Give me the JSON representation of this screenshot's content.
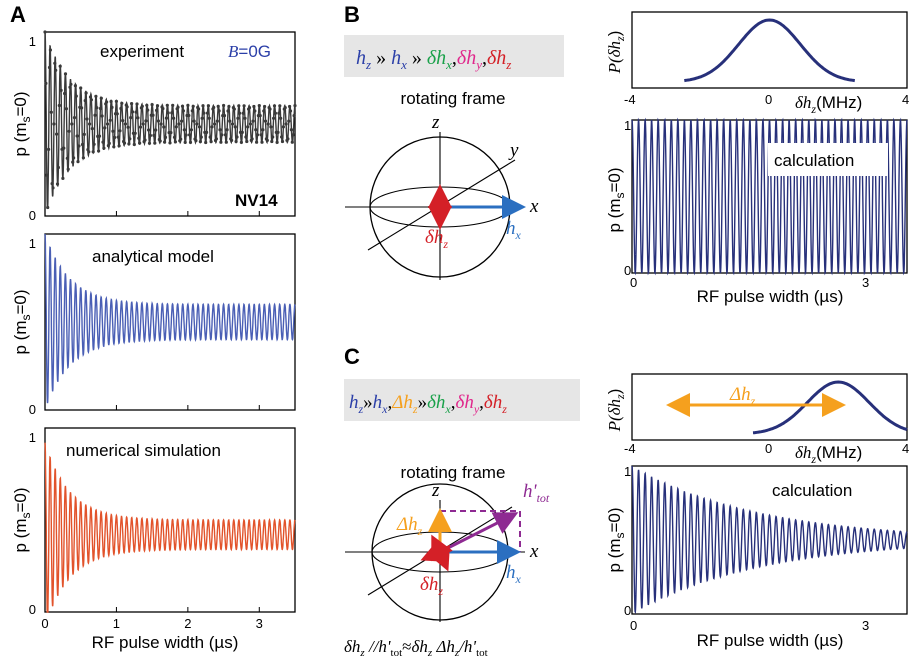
{
  "panels": {
    "A": "A",
    "B": "B",
    "C": "C"
  },
  "colors": {
    "experiment": "#3a3a3a",
    "analytical": "#4a5fb5",
    "numerical": "#e2532b",
    "calculation": "#27307a",
    "red": "#d42027",
    "blue": "#2b6fc0",
    "green": "#1aa14a",
    "magenta": "#e0288c",
    "orange": "#f5a01e",
    "purple": "#8e2a92",
    "box": "#e6e6e6"
  },
  "panelA": {
    "xlabel": "RF pulse width (µs)",
    "ylabel": "p (m",
    "ylabel_sub": "s",
    "ylabel_tail": "=0)",
    "plots": [
      {
        "label": "experiment",
        "b_field_var": "B",
        "b_field_val": "=0G",
        "sample": "NV14"
      },
      {
        "label": "analytical model"
      },
      {
        "label": "numerical simulation"
      }
    ]
  },
  "panelB": {
    "hierarchy": {
      "t1": "h",
      "s1": "z",
      "sep1": " » ",
      "t2": "h",
      "s2": "x",
      "sep2": " » ",
      "t3": "δh",
      "s3": "x",
      "c1": ",",
      "t4": "δh",
      "s4": "y",
      "c2": ",",
      "t5": "δh",
      "s5": "z"
    },
    "frame_label": "rotating frame",
    "axes": {
      "z": "z",
      "y": "y",
      "x": "x"
    },
    "vec_hx": {
      "t": "h",
      "s": "x"
    },
    "vec_dhz": {
      "t": "δh",
      "s": "z"
    },
    "dist_ylabel": {
      "t": "P(δh",
      "s": "z",
      "e": ")"
    },
    "dist_xlabel": {
      "t": "δh",
      "s": "z",
      "e": "(MHz)"
    },
    "calc_label": "calculation",
    "calc_xlabel": "RF pulse width (µs)"
  },
  "panelC": {
    "hierarchy": {
      "t1": "h",
      "s1": "z",
      "sep1": "»",
      "t2": "h",
      "s2": "x",
      "c0": ",",
      "t2b": "Δh",
      "s2b": "z",
      "sep2": "»",
      "t3": "δh",
      "s3": "x",
      "c1": ",",
      "t4": "δh",
      "s4": "y",
      "c2": ",",
      "t5": "δh",
      "s5": "z"
    },
    "frame_label": "rotating frame",
    "axes": {
      "z": "z",
      "x": "x"
    },
    "vec_htot": {
      "t": "h'",
      "s": "tot"
    },
    "vec_Dhz": {
      "t": "Δh",
      "s": "z"
    },
    "vec_dhz": {
      "t": "δh",
      "s": "z"
    },
    "vec_hx": {
      "t": "h",
      "s": "x"
    },
    "equation": {
      "a": "δh",
      "as": "z",
      "b": " //h'",
      "bs": "tot",
      "c": "≈",
      "d": "δh",
      "ds": "z",
      "e": " Δh",
      "es": "z",
      "f": "/h'",
      "fs": "tot"
    },
    "dist_arrow_label": {
      "t": "Δh",
      "s": "z"
    },
    "calc_label": "calculation",
    "calc_xlabel": "RF pulse width (µs)"
  },
  "chart_data": [
    {
      "id": "A1",
      "type": "line",
      "title": "experiment",
      "xlabel": "RF pulse width (µs)",
      "ylabel": "p (ms=0)",
      "xlim": [
        0,
        3.5
      ],
      "ylim": [
        0,
        1
      ],
      "x_ticks": [
        0,
        1,
        2,
        3
      ],
      "y_ticks": [
        0,
        1
      ],
      "show_x_tick_labels": false,
      "series": [
        {
          "style": "line-markers",
          "freq_mhz": 14.0,
          "mean": 0.5,
          "amp0": 0.5,
          "decay_us": 0.35,
          "amp_floor": 0.1
        }
      ]
    },
    {
      "id": "A2",
      "type": "line",
      "title": "analytical model",
      "xlabel": "RF pulse width (µs)",
      "ylabel": "p (ms=0)",
      "xlim": [
        0,
        3.5
      ],
      "ylim": [
        0,
        1
      ],
      "x_ticks": [
        0,
        1,
        2,
        3
      ],
      "y_ticks": [
        0,
        1
      ],
      "show_x_tick_labels": false,
      "series": [
        {
          "style": "line",
          "freq_mhz": 14.0,
          "mean": 0.5,
          "amp0": 0.5,
          "decay_us": 0.35,
          "amp_floor": 0.1
        }
      ]
    },
    {
      "id": "A3",
      "type": "line",
      "title": "numerical simulation",
      "xlabel": "RF pulse width (µs)",
      "ylabel": "p (ms=0)",
      "xlim": [
        0,
        3.5
      ],
      "ylim": [
        0,
        1
      ],
      "x_ticks": [
        0,
        1,
        2,
        3
      ],
      "y_ticks": [
        0,
        1
      ],
      "x_tick_labels": [
        "0",
        "1",
        "2",
        "3"
      ],
      "show_x_tick_labels": true,
      "series": [
        {
          "style": "line",
          "freq_mhz": 14.0,
          "mean": 0.42,
          "amp0": 0.5,
          "decay_us": 0.35,
          "amp_floor": 0.08
        }
      ]
    },
    {
      "id": "B_dist",
      "type": "line",
      "xlabel": "δhz (MHz)",
      "ylabel": "P(δhz)",
      "xlim": [
        -4,
        4
      ],
      "x_tick_labels": [
        "-4",
        "0",
        "4"
      ],
      "series": [
        {
          "style": "gaussian",
          "center": 0,
          "sigma": 0.9
        }
      ]
    },
    {
      "id": "B_calc",
      "type": "line",
      "title": "calculation",
      "xlabel": "RF pulse width (µs)",
      "ylabel": "p (ms=0)",
      "xlim": [
        0,
        3.5
      ],
      "ylim": [
        0,
        1
      ],
      "x_tick_labels": [
        "0",
        "3"
      ],
      "y_tick_labels": [
        "0",
        "1"
      ],
      "series": [
        {
          "style": "line",
          "freq_mhz": 12.0,
          "mean": 0.5,
          "amp0": 0.5,
          "decay_us": 1000,
          "amp_floor": 0.5
        }
      ]
    },
    {
      "id": "C_dist",
      "type": "line",
      "xlabel": "δhz (MHz)",
      "ylabel": "P(δhz)",
      "xlim": [
        -4,
        4
      ],
      "x_tick_labels": [
        "-4",
        "0",
        "4"
      ],
      "series": [
        {
          "style": "gaussian",
          "center": 2.0,
          "sigma": 0.9
        }
      ]
    },
    {
      "id": "C_calc",
      "type": "line",
      "title": "calculation",
      "xlabel": "RF pulse width (µs)",
      "ylabel": "p (ms=0)",
      "xlim": [
        0,
        3.5
      ],
      "ylim": [
        0,
        1
      ],
      "x_tick_labels": [
        "0",
        "3"
      ],
      "y_tick_labels": [
        "0",
        "1"
      ],
      "series": [
        {
          "style": "line",
          "freq_mhz": 12.0,
          "mean": 0.5,
          "amp0": 0.5,
          "decay_us": 1.6,
          "amp_floor": 0.0
        }
      ]
    }
  ]
}
